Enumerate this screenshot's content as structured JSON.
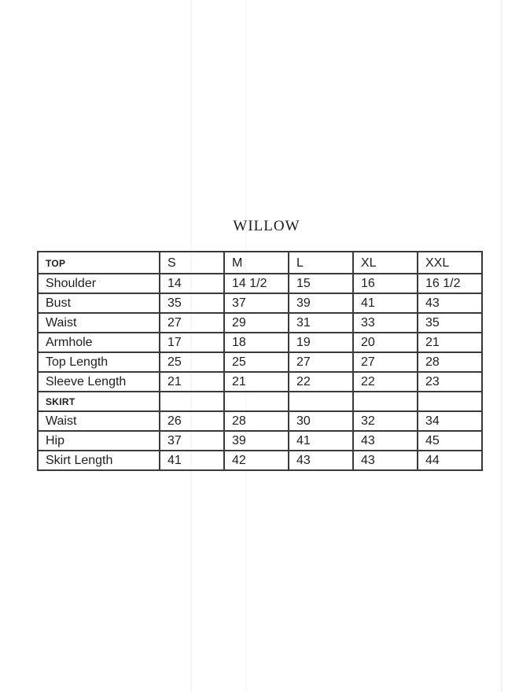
{
  "title": "WILLOW",
  "size_chart": {
    "header": {
      "section_label": "TOP",
      "sizes": [
        "S",
        "M",
        "L",
        "XL",
        "XXL"
      ]
    },
    "rows": [
      {
        "label": "Shoulder",
        "type": "data",
        "values": [
          "14",
          "14 1/2",
          "15",
          "16",
          "16 1/2"
        ]
      },
      {
        "label": "Bust",
        "type": "data",
        "values": [
          "35",
          "37",
          "39",
          "41",
          "43"
        ]
      },
      {
        "label": "Waist",
        "type": "data",
        "values": [
          "27",
          "29",
          "31",
          "33",
          "35"
        ]
      },
      {
        "label": "Armhole",
        "type": "data",
        "values": [
          "17",
          "18",
          "19",
          "20",
          "21"
        ]
      },
      {
        "label": "Top Length",
        "type": "data",
        "values": [
          "25",
          "25",
          "27",
          "27",
          "28"
        ]
      },
      {
        "label": "Sleeve Length",
        "type": "data",
        "values": [
          "21",
          "21",
          "22",
          "22",
          "23"
        ]
      },
      {
        "label": "SKIRT",
        "type": "section",
        "values": [
          "",
          "",
          "",
          "",
          ""
        ]
      },
      {
        "label": "Waist",
        "type": "data",
        "values": [
          "26",
          "28",
          "30",
          "32",
          "34"
        ]
      },
      {
        "label": "Hip",
        "type": "data",
        "values": [
          "37",
          "39",
          "41",
          "43",
          "45"
        ]
      },
      {
        "label": "Skirt Length",
        "type": "data",
        "values": [
          "41",
          "42",
          "43",
          "43",
          "44"
        ]
      }
    ]
  },
  "colors": {
    "background": "#ffffff",
    "table_border": "#3a3a3a",
    "text": "#1e1e1e"
  }
}
